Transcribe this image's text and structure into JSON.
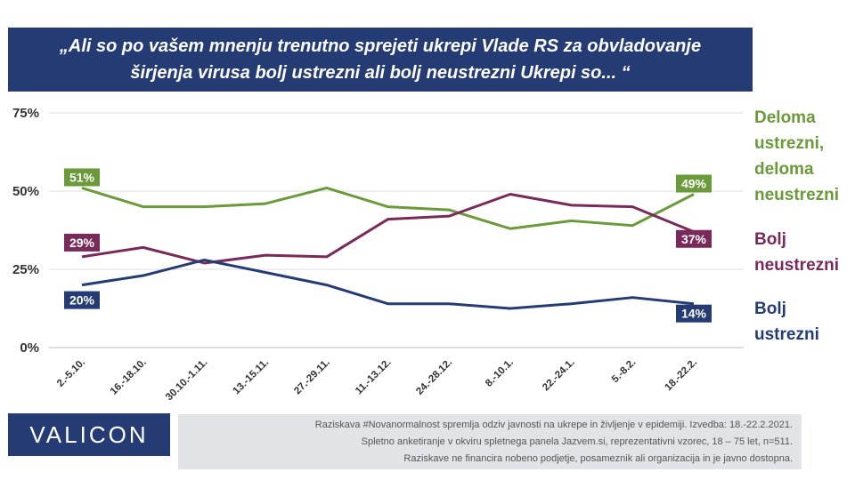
{
  "title": {
    "line1": "„Ali so po vašem mnenju trenutno sprejeti ukrepi Vlade RS za obvladovanje",
    "line2": "širjenja virusa bolj ustrezni ali bolj neustrezni  Ukrepi so... “"
  },
  "legend": {
    "partly": [
      "Deloma",
      "ustrezni,",
      "deloma",
      "neustrezni"
    ],
    "unsuitable": [
      "Bolj",
      "neustrezni"
    ],
    "suitable": [
      "Bolj",
      "ustrezni"
    ]
  },
  "footer": {
    "logo": "VALICON",
    "note_lines": [
      "Raziskava #Novanormalnost spremlja odziv javnosti na ukrepe in življenje v epidemiji. Izvedba: 18.-22.2.2021.",
      "Spletno anketiranje v okviru spletnega panela Jazvem.si, reprezentativni vzorec, 18 – 75 let, n=511.",
      "Raziskave ne financira nobeno podjetje, posameznik ali organizacija in je javno dostopna."
    ]
  },
  "chart_data": {
    "type": "line",
    "categories": [
      "2.-5.10.",
      "16.-18.10.",
      "30.10.-1.11.",
      "13.-15.11.",
      "27.-29.11.",
      "11.-13.12.",
      "24.-28.12.",
      "8.-10.1.",
      "22.-24.1.",
      "5.-8.2.",
      "18.-22.2."
    ],
    "ylim": [
      0,
      75
    ],
    "yticks": [
      0,
      25,
      50,
      75
    ],
    "ytick_labels": [
      "0%",
      "25%",
      "50%",
      "75%"
    ],
    "grid": true,
    "legend_position": "right",
    "series": [
      {
        "name": "Deloma ustrezni, deloma neustrezni",
        "color": "#6a9a3a",
        "values": [
          51,
          45,
          45,
          46,
          51,
          45,
          44,
          38,
          40.5,
          39,
          49
        ],
        "first_label": "51%",
        "last_label": "49%"
      },
      {
        "name": "Bolj neustrezni",
        "color": "#7a2a5a",
        "values": [
          29,
          32,
          27,
          29.5,
          29,
          41,
          42,
          49,
          45.5,
          45,
          37
        ],
        "first_label": "29%",
        "last_label": "37%"
      },
      {
        "name": "Bolj ustrezni",
        "color": "#243b73",
        "values": [
          20,
          23,
          28,
          24,
          20,
          14,
          14,
          12.5,
          14,
          16,
          14
        ],
        "first_label": "20%",
        "last_label": "14%"
      }
    ]
  }
}
